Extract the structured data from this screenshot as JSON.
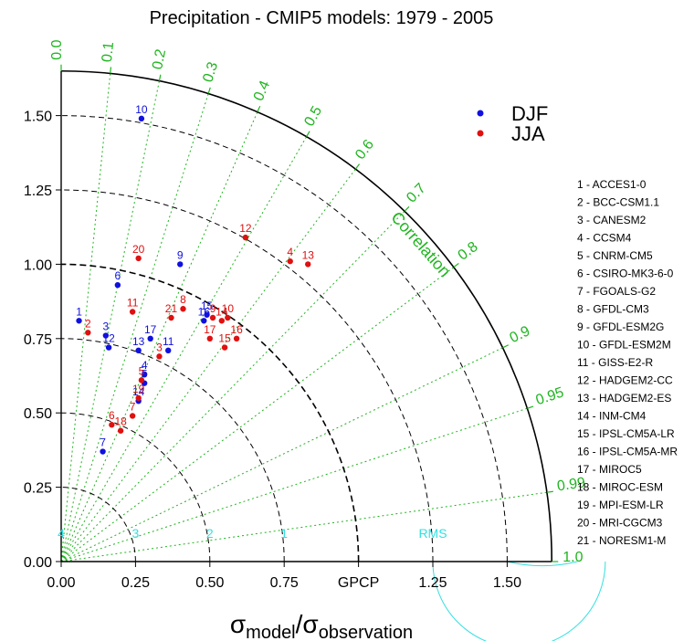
{
  "chart_data": {
    "type": "scatter",
    "subtype": "taylor-diagram",
    "title": "Precipitation - CMIP5 models: 1979 - 2005",
    "xlabel": {
      "sigma": "σ",
      "sub1": "model",
      "slash": "/",
      "sub2": "observation"
    },
    "reference_label": "GPCP",
    "reference_std": 1.0,
    "std_range": [
      0,
      1.65
    ],
    "std_ticks": [
      "0.00",
      "0.25",
      "0.50",
      "0.75",
      "1.00",
      "1.25",
      "1.50"
    ],
    "x_ticks": [
      "0.00",
      "0.25",
      "0.50",
      "0.75",
      "GPCP",
      "1.25",
      "1.50"
    ],
    "correlation_title": "Correlation",
    "correlation_ticks": [
      "0.0",
      "0.1",
      "0.2",
      "0.3",
      "0.4",
      "0.5",
      "0.6",
      "0.7",
      "0.8",
      "0.9",
      "0.95",
      "0.99",
      "1.0"
    ],
    "rms_title": "RMS",
    "rms_ticks": [
      "1",
      "2",
      "3",
      "4"
    ],
    "legend_placement": "top-right",
    "colors": {
      "DJF": "#1010e0",
      "JJA": "#e01010",
      "correlation": "#1fb51f",
      "rms": "#33e0e0"
    },
    "series": [
      {
        "name": "DJF",
        "points": [
          {
            "label": "1",
            "x": 0.06,
            "y": 0.81
          },
          {
            "label": "3",
            "x": 0.15,
            "y": 0.76
          },
          {
            "label": "4",
            "x": 0.28,
            "y": 0.63
          },
          {
            "label": "5",
            "x": 0.28,
            "y": 0.6
          },
          {
            "label": "6",
            "x": 0.19,
            "y": 0.93
          },
          {
            "label": "7",
            "x": 0.14,
            "y": 0.37
          },
          {
            "label": "9",
            "x": 0.4,
            "y": 1.0
          },
          {
            "label": "10",
            "x": 0.27,
            "y": 1.49
          },
          {
            "label": "11",
            "x": 0.36,
            "y": 0.71
          },
          {
            "label": "12",
            "x": 0.16,
            "y": 0.72
          },
          {
            "label": "13",
            "x": 0.26,
            "y": 0.71
          },
          {
            "label": "14",
            "x": 0.26,
            "y": 0.54
          },
          {
            "label": "15",
            "x": 0.49,
            "y": 0.83
          },
          {
            "label": "16",
            "x": 0.48,
            "y": 0.81
          },
          {
            "label": "17",
            "x": 0.3,
            "y": 0.75
          }
        ]
      },
      {
        "name": "JJA",
        "points": [
          {
            "label": "2",
            "x": 0.09,
            "y": 0.77
          },
          {
            "label": "3",
            "x": 0.33,
            "y": 0.69
          },
          {
            "label": "4",
            "x": 0.77,
            "y": 1.01
          },
          {
            "label": "5",
            "x": 0.27,
            "y": 0.61
          },
          {
            "label": "6",
            "x": 0.17,
            "y": 0.46
          },
          {
            "label": "7",
            "x": 0.24,
            "y": 0.49
          },
          {
            "label": "8",
            "x": 0.41,
            "y": 0.85
          },
          {
            "label": "9",
            "x": 0.51,
            "y": 0.82
          },
          {
            "label": "10",
            "x": 0.56,
            "y": 0.82
          },
          {
            "label": "11",
            "x": 0.24,
            "y": 0.84
          },
          {
            "label": "12",
            "x": 0.62,
            "y": 1.09
          },
          {
            "label": "13",
            "x": 0.83,
            "y": 1.0
          },
          {
            "label": "14",
            "x": 0.54,
            "y": 0.81
          },
          {
            "label": "15",
            "x": 0.55,
            "y": 0.72
          },
          {
            "label": "16",
            "x": 0.59,
            "y": 0.75
          },
          {
            "label": "17",
            "x": 0.5,
            "y": 0.75
          },
          {
            "label": "18",
            "x": 0.2,
            "y": 0.44
          },
          {
            "label": "19",
            "x": 0.26,
            "y": 0.55
          },
          {
            "label": "20",
            "x": 0.26,
            "y": 1.02
          },
          {
            "label": "21",
            "x": 0.37,
            "y": 0.82
          }
        ]
      }
    ],
    "models": [
      "1 - ACCES1-0",
      "2 - BCC-CSM1.1",
      "3 - CANESM2",
      "4 - CCSM4",
      "5 - CNRM-CM5",
      "6 - CSIRO-MK3-6-0",
      "7 - FGOALS-G2",
      "8 - GFDL-CM3",
      "9 - GFDL-ESM2G",
      "10 - GFDL-ESM2M",
      "11 - GISS-E2-R",
      "12 - HADGEM2-CC",
      "13 - HADGEM2-ES",
      "14 - INM-CM4",
      "15 - IPSL-CM5A-LR",
      "16 - IPSL-CM5A-MR",
      "17 - MIROC5",
      "18 - MIROC-ESM",
      "19 - MPI-ESM-LR",
      "20 - MRI-CGCM3",
      "21 - NORESM1-M"
    ]
  }
}
